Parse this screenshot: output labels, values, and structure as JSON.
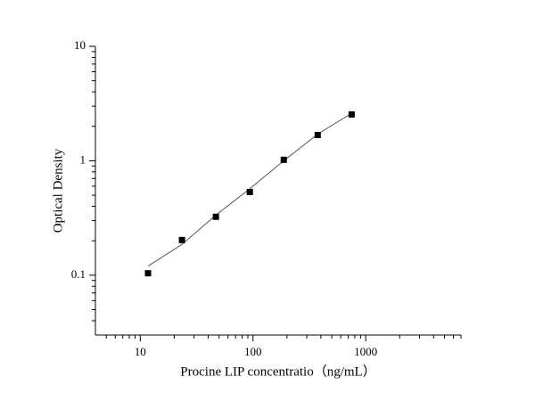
{
  "chart_data": {
    "type": "scatter",
    "x_label": "Procine LIP concentratio（ng/mL）",
    "y_label": "Optical Density",
    "x": [
      11.72,
      23.44,
      46.88,
      93.75,
      187.5,
      375,
      750
    ],
    "values": [
      0.104,
      0.203,
      0.324,
      0.534,
      1.02,
      1.68,
      2.54
    ],
    "color": "#000000",
    "fit": {
      "x": [
        11.72,
        23.44,
        46.88,
        93.75,
        187.5,
        375,
        750
      ],
      "values": [
        0.12,
        0.186,
        0.335,
        0.57,
        1.0,
        1.71,
        2.6
      ],
      "color": "#555555"
    },
    "xlog": true,
    "ylog": true,
    "xlim": [
      4,
      7000
    ],
    "ylim": [
      0.03,
      10
    ],
    "xticks": [
      10,
      100,
      1000
    ],
    "yticks": [
      0.1,
      1,
      10
    ],
    "xminorticks": [
      5,
      6,
      7,
      8,
      9,
      20,
      30,
      40,
      50,
      60,
      70,
      80,
      90,
      200,
      300,
      400,
      500,
      600,
      700,
      800,
      900,
      2000,
      3000,
      4000,
      5000,
      6000,
      7000
    ],
    "yminorticks": [
      0.04,
      0.05,
      0.06,
      0.07,
      0.08,
      0.09,
      0.2,
      0.3,
      0.4,
      0.5,
      0.6,
      0.7,
      0.8,
      0.9,
      2,
      3,
      4,
      5,
      6,
      7,
      8,
      9
    ],
    "grid": false
  }
}
